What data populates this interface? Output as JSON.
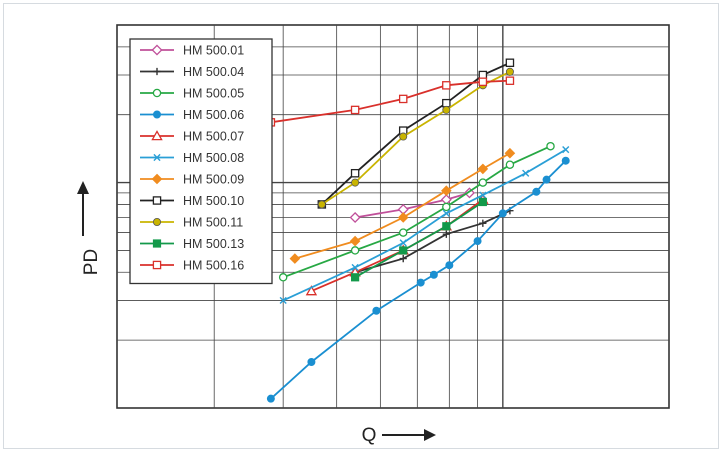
{
  "chart_data": {
    "type": "line",
    "title": "",
    "xlabel": "Q",
    "ylabel": "PD",
    "x_scale": "log",
    "y_scale": "log",
    "xlim": [
      20,
      200
    ],
    "ylim": [
      1,
      50
    ],
    "grid": true,
    "legend_position": "top-left",
    "series": [
      {
        "name": "HM 500.01",
        "color": "#c0509a",
        "marker": "diamond-open",
        "points": [
          [
            54,
            7.0
          ],
          [
            66,
            7.6
          ],
          [
            79,
            8.4
          ],
          [
            87,
            9.0
          ]
        ]
      },
      {
        "name": "HM 500.04",
        "color": "#333333",
        "marker": "plus",
        "points": [
          [
            54,
            4.0
          ],
          [
            66,
            4.6
          ],
          [
            79,
            5.9
          ],
          [
            92,
            6.6
          ],
          [
            103,
            7.5
          ]
        ]
      },
      {
        "name": "HM 500.05",
        "color": "#27a844",
        "marker": "circle-open",
        "points": [
          [
            40,
            3.8
          ],
          [
            54,
            5.0
          ],
          [
            66,
            6.0
          ],
          [
            79,
            7.8
          ],
          [
            92,
            10.0
          ],
          [
            103,
            12.0
          ],
          [
            122,
            14.5
          ]
        ]
      },
      {
        "name": "HM 500.06",
        "color": "#1a8fd1",
        "marker": "circle-filled",
        "points": [
          [
            38,
            1.1
          ],
          [
            45,
            1.6
          ],
          [
            59,
            2.7
          ],
          [
            71,
            3.6
          ],
          [
            75,
            3.9
          ],
          [
            80,
            4.3
          ],
          [
            90,
            5.5
          ],
          [
            100,
            7.3
          ],
          [
            115,
            9.1
          ],
          [
            120,
            10.3
          ],
          [
            130,
            12.5
          ]
        ]
      },
      {
        "name": "HM 500.07",
        "color": "#d9302b",
        "marker": "triangle-open",
        "points": [
          [
            45,
            3.3
          ],
          [
            54,
            4.0
          ],
          [
            66,
            5.0
          ],
          [
            79,
            6.4
          ],
          [
            92,
            8.4
          ]
        ]
      },
      {
        "name": "HM 500.08",
        "color": "#2a9fd6",
        "marker": "x",
        "points": [
          [
            40,
            3.0
          ],
          [
            54,
            4.2
          ],
          [
            66,
            5.4
          ],
          [
            79,
            7.3
          ],
          [
            92,
            8.8
          ],
          [
            110,
            11.0
          ],
          [
            130,
            14.0
          ]
        ]
      },
      {
        "name": "HM 500.09",
        "color": "#f08c1f",
        "marker": "diamond-filled",
        "points": [
          [
            42,
            4.6
          ],
          [
            54,
            5.5
          ],
          [
            66,
            7.0
          ],
          [
            79,
            9.2
          ],
          [
            92,
            11.5
          ],
          [
            103,
            13.5
          ]
        ]
      },
      {
        "name": "HM 500.10",
        "color": "#222222",
        "marker": "square-open",
        "points": [
          [
            47,
            8.0
          ],
          [
            54,
            11.0
          ],
          [
            66,
            17.0
          ],
          [
            79,
            22.5
          ],
          [
            92,
            30.0
          ],
          [
            103,
            34.0
          ]
        ]
      },
      {
        "name": "HM 500.11",
        "color": "#c9b400",
        "marker": "circle-filled",
        "points": [
          [
            47,
            8.0
          ],
          [
            54,
            10.0
          ],
          [
            66,
            16.0
          ],
          [
            79,
            21.0
          ],
          [
            92,
            27.0
          ],
          [
            103,
            31.0
          ]
        ]
      },
      {
        "name": "HM 500.13",
        "color": "#13994a",
        "marker": "square-filled",
        "points": [
          [
            54,
            3.8
          ],
          [
            66,
            5.0
          ],
          [
            79,
            6.4
          ],
          [
            92,
            8.2
          ]
        ]
      },
      {
        "name": "HM 500.16",
        "color": "#d9302b",
        "marker": "square-open",
        "points": [
          [
            38,
            18.5
          ],
          [
            54,
            21.0
          ],
          [
            66,
            23.5
          ],
          [
            79,
            27.0
          ],
          [
            92,
            28.0
          ],
          [
            103,
            28.3
          ]
        ]
      }
    ]
  }
}
